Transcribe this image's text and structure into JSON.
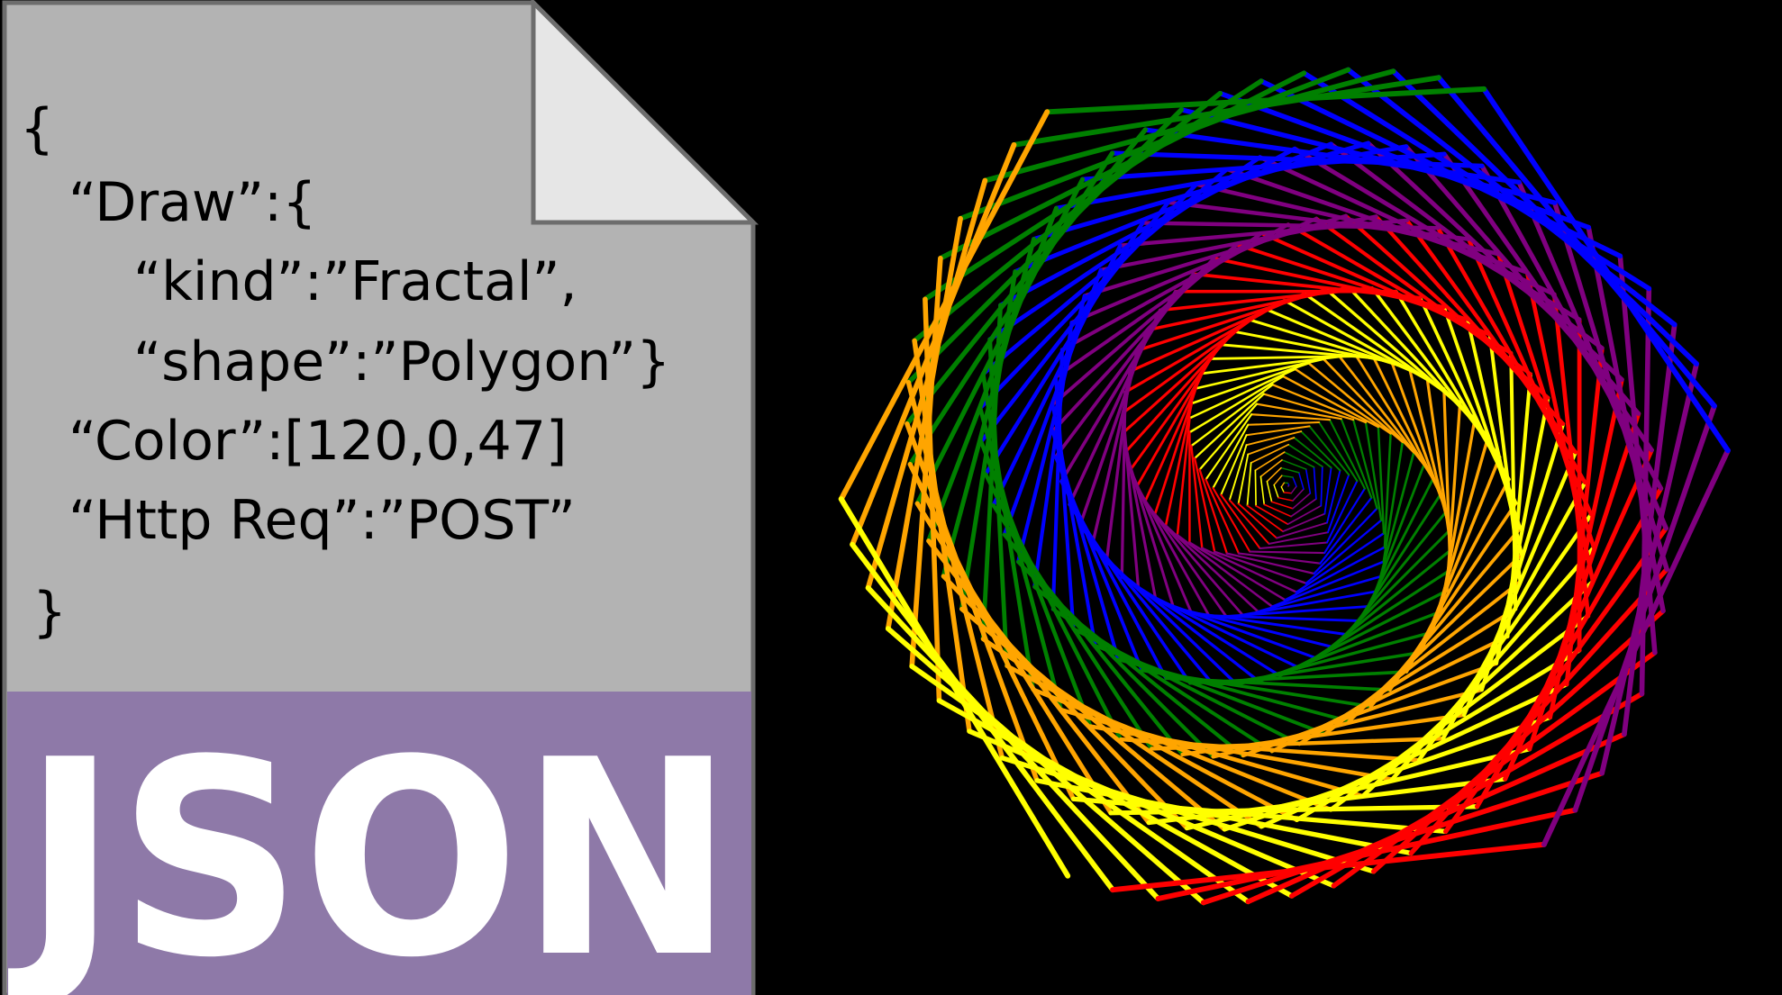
{
  "file": {
    "code_lines": [
      "{",
      "“Draw”:{",
      "“kind”:”Fractal”,",
      "“shape”:”Polygon”}",
      "“Color”:[120,0,47]",
      "“Http Req”:”POST”",
      "}"
    ],
    "label": "JSON"
  }
}
